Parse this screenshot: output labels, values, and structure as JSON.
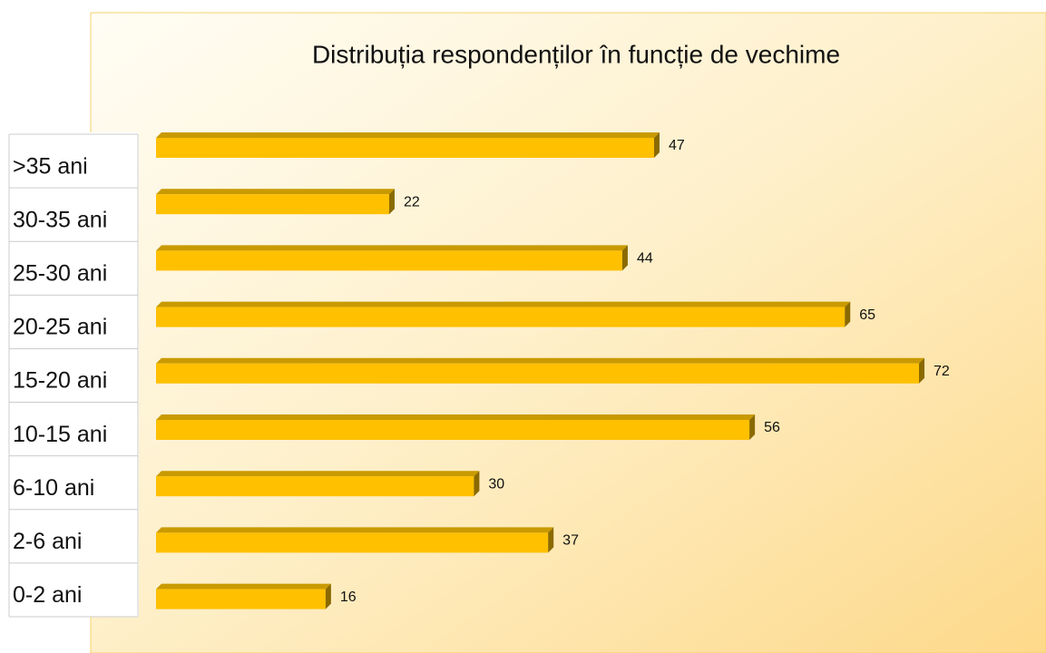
{
  "chart_data": {
    "type": "bar",
    "orientation": "horizontal",
    "title": "Distribuția respondenților în funcție de  vechime",
    "categories": [
      ">35 ani",
      "30-35 ani",
      "25-30 ani",
      "20-25 ani",
      "15-20 ani",
      "10-15 ani",
      "6-10 ani",
      "2-6 ani",
      "0-2 ani"
    ],
    "values": [
      47,
      22,
      44,
      65,
      72,
      56,
      30,
      37,
      16
    ],
    "color": "#ffc000"
  }
}
